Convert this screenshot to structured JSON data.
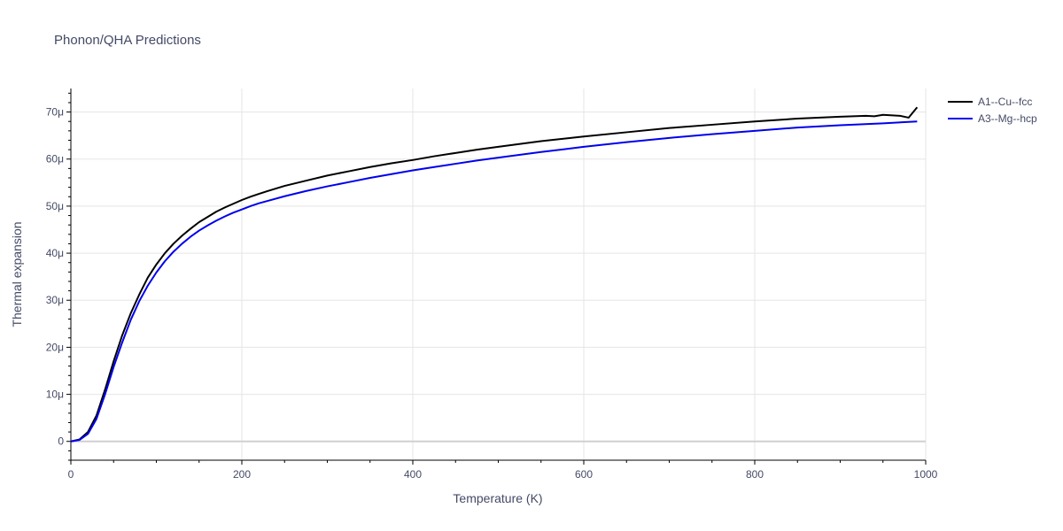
{
  "chart_data": {
    "type": "line",
    "title": "Phonon/QHA Predictions",
    "xlabel": "Temperature (K)",
    "ylabel": "Thermal expansion",
    "xlim": [
      0,
      1000
    ],
    "ylim": [
      -4e-06,
      7.5e-05
    ],
    "x_ticks": [
      {
        "value": 0,
        "label": "0"
      },
      {
        "value": 200,
        "label": "200"
      },
      {
        "value": 400,
        "label": "400"
      },
      {
        "value": 600,
        "label": "600"
      },
      {
        "value": 800,
        "label": "800"
      },
      {
        "value": 1000,
        "label": "1000"
      }
    ],
    "y_ticks": [
      {
        "value": 0,
        "label": "0"
      },
      {
        "value": 1e-05,
        "label": "10μ"
      },
      {
        "value": 2e-05,
        "label": "20μ"
      },
      {
        "value": 3e-05,
        "label": "30μ"
      },
      {
        "value": 4e-05,
        "label": "40μ"
      },
      {
        "value": 5e-05,
        "label": "50μ"
      },
      {
        "value": 6e-05,
        "label": "60μ"
      },
      {
        "value": 7e-05,
        "label": "70μ"
      }
    ],
    "grid": true,
    "legend_position": "top-right",
    "series": [
      {
        "name": "A1--Cu--fcc",
        "color": "#000000",
        "x": [
          0,
          10,
          20,
          30,
          40,
          50,
          60,
          70,
          80,
          90,
          100,
          110,
          120,
          130,
          140,
          150,
          160,
          170,
          180,
          190,
          200,
          210,
          220,
          230,
          250,
          275,
          300,
          325,
          350,
          375,
          400,
          425,
          450,
          475,
          500,
          550,
          600,
          650,
          700,
          750,
          800,
          850,
          900,
          930,
          940,
          950,
          970,
          980,
          990
        ],
        "y": [
          0,
          4e-07,
          2e-06,
          5.5e-06,
          1.1e-05,
          1.7e-05,
          2.25e-05,
          2.72e-05,
          3.12e-05,
          3.48e-05,
          3.76e-05,
          4e-05,
          4.2e-05,
          4.37e-05,
          4.52e-05,
          4.66e-05,
          4.77e-05,
          4.88e-05,
          4.97e-05,
          5.05e-05,
          5.13e-05,
          5.2e-05,
          5.26e-05,
          5.32e-05,
          5.43e-05,
          5.54e-05,
          5.65e-05,
          5.74e-05,
          5.83e-05,
          5.91e-05,
          5.98e-05,
          6.06e-05,
          6.13e-05,
          6.2e-05,
          6.26e-05,
          6.38e-05,
          6.48e-05,
          6.57e-05,
          6.66e-05,
          6.73e-05,
          6.8e-05,
          6.86e-05,
          6.9e-05,
          6.92e-05,
          6.91e-05,
          6.94e-05,
          6.92e-05,
          6.88e-05,
          7.1e-05
        ]
      },
      {
        "name": "A3--Mg--hcp",
        "color": "#0000ee",
        "x": [
          0,
          10,
          20,
          30,
          40,
          50,
          60,
          70,
          80,
          90,
          100,
          110,
          120,
          130,
          140,
          150,
          160,
          170,
          180,
          190,
          200,
          210,
          220,
          230,
          250,
          275,
          300,
          325,
          350,
          375,
          400,
          425,
          450,
          475,
          500,
          550,
          600,
          650,
          700,
          750,
          800,
          850,
          900,
          950,
          990
        ],
        "y": [
          0,
          3e-07,
          1.6e-06,
          4.8e-06,
          1e-05,
          1.58e-05,
          2.1e-05,
          2.58e-05,
          2.98e-05,
          3.31e-05,
          3.59e-05,
          3.83e-05,
          4.03e-05,
          4.2e-05,
          4.35e-05,
          4.48e-05,
          4.59e-05,
          4.69e-05,
          4.78e-05,
          4.86e-05,
          4.93e-05,
          5e-05,
          5.06e-05,
          5.11e-05,
          5.21e-05,
          5.32e-05,
          5.42e-05,
          5.51e-05,
          5.6e-05,
          5.68e-05,
          5.76e-05,
          5.83e-05,
          5.9e-05,
          5.97e-05,
          6.03e-05,
          6.15e-05,
          6.26e-05,
          6.36e-05,
          6.45e-05,
          6.53e-05,
          6.6e-05,
          6.67e-05,
          6.72e-05,
          6.76e-05,
          6.8e-05
        ]
      }
    ]
  }
}
